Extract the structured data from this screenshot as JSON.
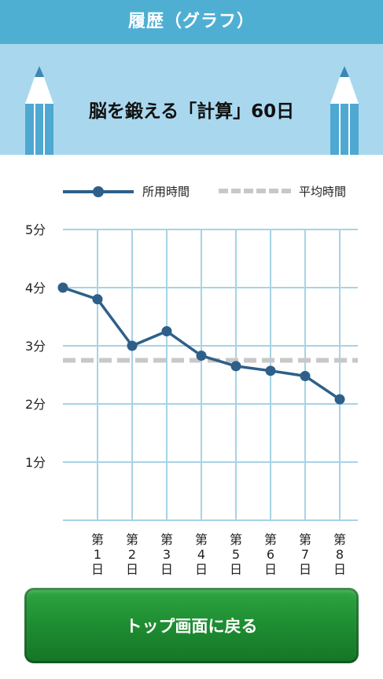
{
  "header": {
    "title": "履歴（グラフ）"
  },
  "banner": {
    "title": "脳を鍛える「計算」60日"
  },
  "legend": {
    "series_label": "所用時間",
    "average_label": "平均時間"
  },
  "colors": {
    "series": "#2e5f8a",
    "average": "#c8c8c8",
    "grid": "#a7d3e6",
    "accent": "#4fafd3",
    "button": "#1f8f33"
  },
  "chart_data": {
    "type": "line",
    "categories": [
      "第1日",
      "第2日",
      "第3日",
      "第4日",
      "第5日",
      "第6日",
      "第7日",
      "第8日"
    ],
    "x_labels": [
      [
        "第",
        "1",
        "日"
      ],
      [
        "第",
        "2",
        "日"
      ],
      [
        "第",
        "3",
        "日"
      ],
      [
        "第",
        "4",
        "日"
      ],
      [
        "第",
        "5",
        "日"
      ],
      [
        "第",
        "6",
        "日"
      ],
      [
        "第",
        "7",
        "日"
      ],
      [
        "第",
        "8",
        "日"
      ]
    ],
    "y_tick_labels": [
      "1分",
      "2分",
      "3分",
      "4分",
      "5分"
    ],
    "y_ticks": [
      1,
      2,
      3,
      4,
      5
    ],
    "ylim": [
      0,
      5
    ],
    "series": [
      {
        "name": "所用時間",
        "x": [
          0,
          1,
          2,
          3,
          4,
          5,
          6,
          7,
          8
        ],
        "values": [
          4.0,
          3.8,
          3.0,
          3.25,
          2.83,
          2.65,
          2.57,
          2.48,
          2.08
        ]
      }
    ],
    "average": {
      "name": "平均時間",
      "value": 2.75
    },
    "grid": true,
    "legend_position": "top"
  },
  "footer": {
    "button_label": "トップ画面に戻る"
  }
}
